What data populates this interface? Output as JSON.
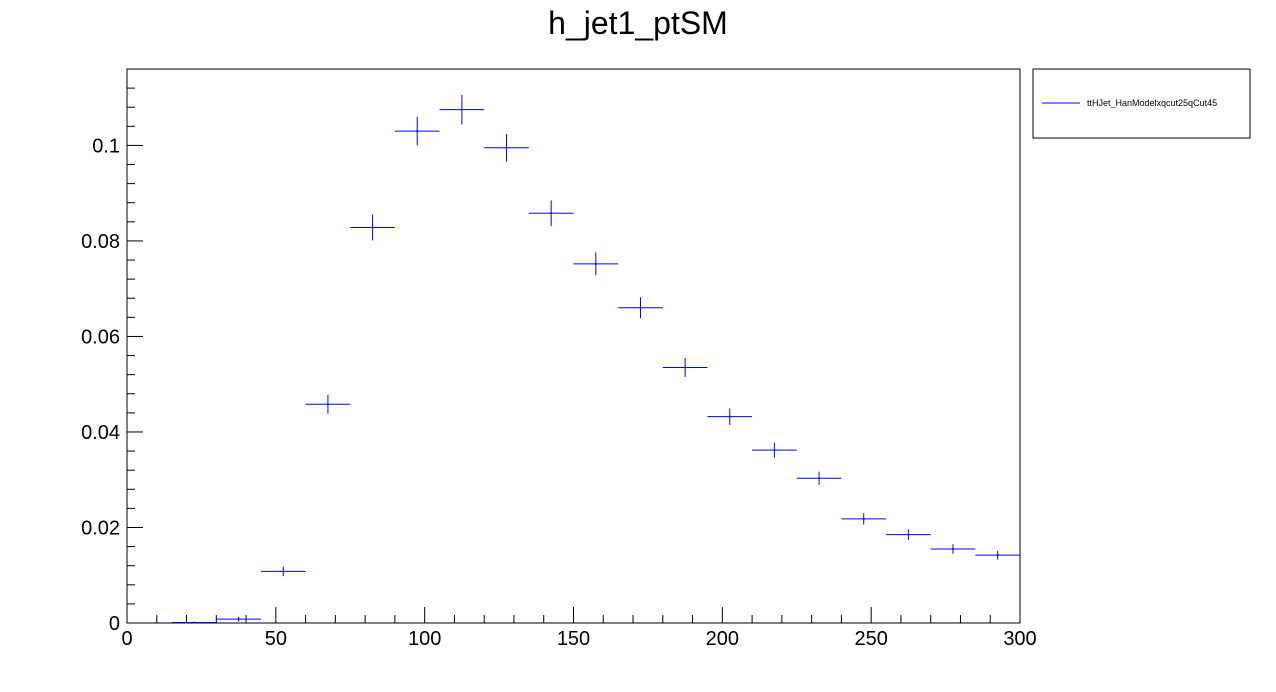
{
  "chart_data": {
    "type": "scatter",
    "title": "h_jet1_ptSM",
    "xlabel": "",
    "ylabel": "",
    "xlim": [
      0,
      300
    ],
    "ylim": [
      0,
      0.116
    ],
    "grid": false,
    "legend_position": "top-right",
    "x_ticks": [
      0,
      50,
      100,
      150,
      200,
      250,
      300
    ],
    "x_tick_labels": [
      "0",
      "50",
      "100",
      "150",
      "200",
      "250",
      "300"
    ],
    "y_ticks": [
      0,
      0.02,
      0.04,
      0.06,
      0.08,
      0.1
    ],
    "y_tick_labels": [
      "0",
      "0.02",
      "0.04",
      "0.06",
      "0.08",
      "0.1"
    ],
    "bin_width": 15,
    "series": [
      {
        "name": "ttHJet_HanModelxqcut25qCut45",
        "color": "#0000ff",
        "x": [
          22.5,
          37.5,
          52.5,
          67.5,
          82.5,
          97.5,
          112.5,
          127.5,
          142.5,
          157.5,
          172.5,
          187.5,
          202.5,
          217.5,
          232.5,
          247.5,
          262.5,
          277.5,
          292.5
        ],
        "y": [
          0.0001,
          0.0008,
          0.0108,
          0.0458,
          0.0828,
          0.103,
          0.1075,
          0.0995,
          0.0858,
          0.0752,
          0.066,
          0.0535,
          0.0432,
          0.0362,
          0.0303,
          0.0218,
          0.0185,
          0.0155,
          0.0142
        ],
        "y_err": [
          0.0001,
          0.0005,
          0.001,
          0.002,
          0.0027,
          0.003,
          0.0031,
          0.0029,
          0.0027,
          0.0024,
          0.0022,
          0.002,
          0.0017,
          0.0016,
          0.0014,
          0.0012,
          0.0011,
          0.001,
          0.0009
        ]
      }
    ]
  }
}
